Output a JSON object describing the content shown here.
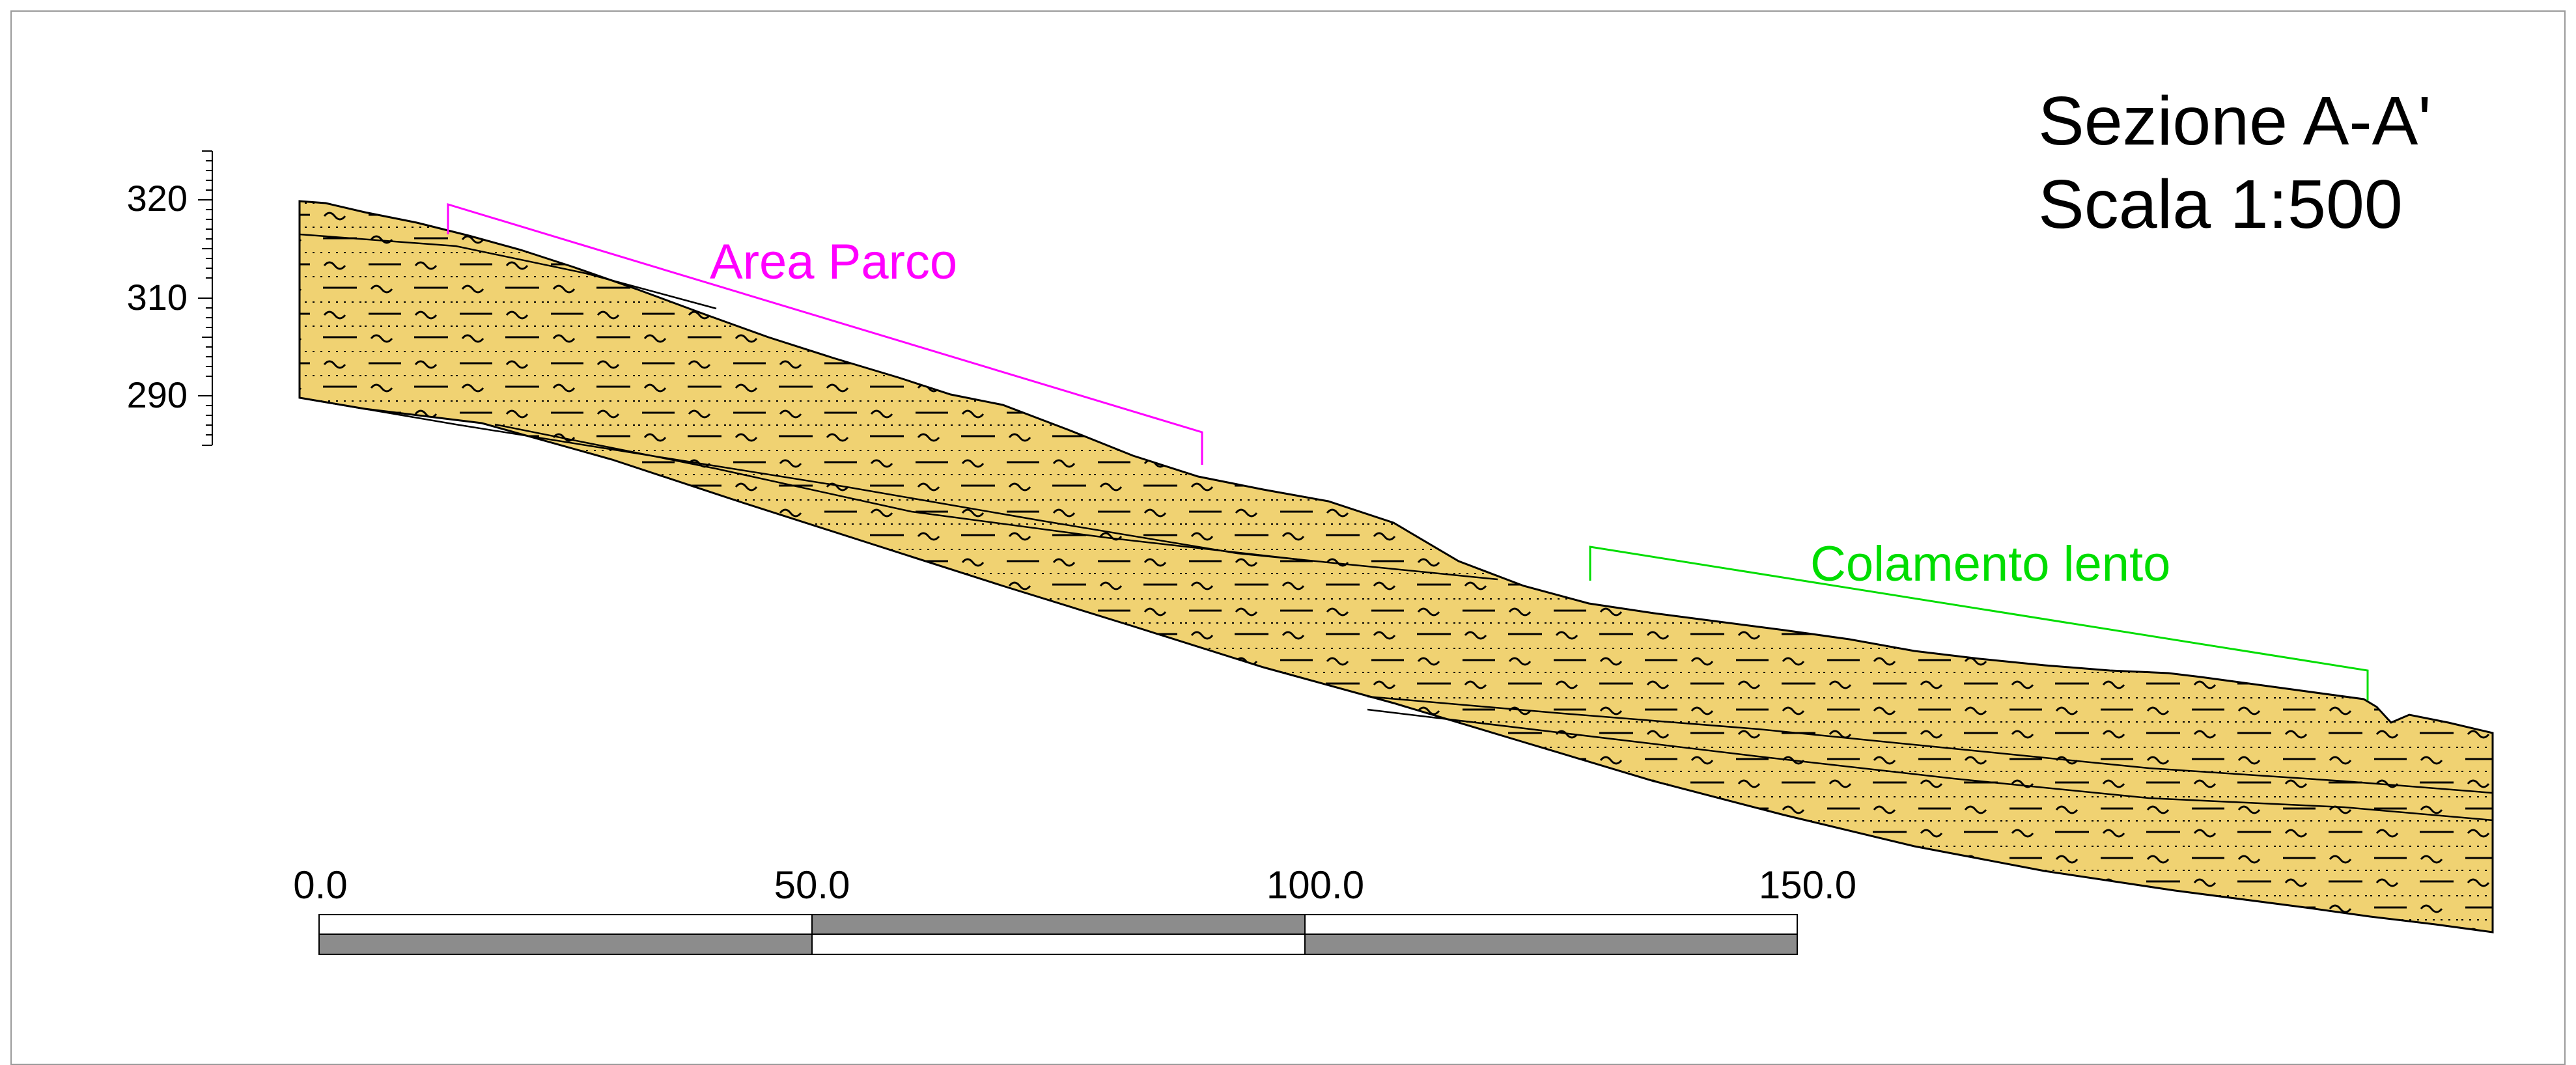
{
  "title": {
    "section": "Sezione A-A'",
    "scale": "Scala 1:500"
  },
  "elevation_axis": {
    "labels": [
      "320",
      "310",
      "290"
    ]
  },
  "annotations": [
    {
      "label": "Area Parco",
      "color": "#ff00ff"
    },
    {
      "label": "Colamento lento",
      "color": "#00dd00"
    }
  ],
  "scale_bar": {
    "labels": [
      "0.0",
      "50.0",
      "100.0",
      "150.0"
    ]
  },
  "colors": {
    "terrain_fill": "#f0d272",
    "scale_dark": "#8c8c8c",
    "outline": "#000000"
  }
}
